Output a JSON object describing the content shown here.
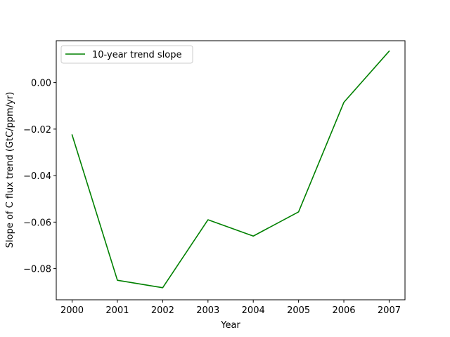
{
  "chart_data": {
    "type": "line",
    "title": "",
    "xlabel": "Year",
    "ylabel": "Slope of C flux trend (GtC/ppm/yr)",
    "x": [
      2000,
      2001,
      2002,
      2003,
      2004,
      2005,
      2006,
      2007
    ],
    "series": [
      {
        "name": "10-year trend slope",
        "color": "#008000",
        "values": [
          -0.0225,
          -0.085,
          -0.0882,
          -0.059,
          -0.066,
          -0.0556,
          -0.0085,
          0.0135
        ]
      }
    ],
    "xlim": [
      1999.65,
      2007.35
    ],
    "ylim": [
      -0.0934,
      0.018
    ],
    "xticks": [
      "2000",
      "2001",
      "2002",
      "2003",
      "2004",
      "2005",
      "2006",
      "2007"
    ],
    "yticks": [
      "0.00",
      "−0.02",
      "−0.04",
      "−0.06",
      "−0.08"
    ],
    "legend_position": "upper-left",
    "grid": false
  }
}
